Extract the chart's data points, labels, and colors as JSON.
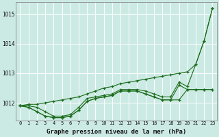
{
  "title": "Graphe pression niveau de la mer (hPa)",
  "bg_color": "#cceae4",
  "grid_color": "#ffffff",
  "line_color": "#1a6b1a",
  "xlim": [
    -0.5,
    23.5
  ],
  "ylim": [
    1011.4,
    1015.4
  ],
  "yticks": [
    1012,
    1013,
    1014,
    1015
  ],
  "xticks": [
    0,
    1,
    2,
    3,
    4,
    5,
    6,
    7,
    8,
    9,
    10,
    11,
    12,
    13,
    14,
    15,
    16,
    17,
    18,
    19,
    20,
    21,
    22,
    23
  ],
  "series": [
    [
      1011.9,
      1011.95,
      1011.95,
      1012.0,
      1012.05,
      1012.1,
      1012.15,
      1012.2,
      1012.3,
      1012.4,
      1012.5,
      1012.55,
      1012.65,
      1012.7,
      1012.75,
      1012.8,
      1012.85,
      1012.9,
      1012.95,
      1013.0,
      1013.05,
      1013.3,
      1014.1,
      1015.2
    ],
    [
      1011.9,
      1011.9,
      1011.85,
      1011.7,
      1011.55,
      1011.55,
      1011.6,
      1011.85,
      1012.15,
      1012.2,
      1012.25,
      1012.3,
      1012.45,
      1012.45,
      1012.45,
      1012.4,
      1012.3,
      1012.2,
      1012.2,
      1012.7,
      1012.55,
      1013.3,
      1014.1,
      1015.2
    ],
    [
      1011.9,
      1011.85,
      1011.7,
      1011.55,
      1011.5,
      1011.5,
      1011.55,
      1011.75,
      1012.05,
      1012.15,
      1012.2,
      1012.25,
      1012.4,
      1012.4,
      1012.4,
      1012.3,
      1012.2,
      1012.1,
      1012.1,
      1012.6,
      1012.45,
      1012.45,
      1012.45,
      1012.45
    ],
    [
      1011.9,
      1011.85,
      1011.7,
      1011.55,
      1011.5,
      1011.5,
      1011.55,
      1011.75,
      1012.05,
      1012.15,
      1012.2,
      1012.25,
      1012.4,
      1012.4,
      1012.4,
      1012.3,
      1012.2,
      1012.1,
      1012.1,
      1012.1,
      1012.45,
      1012.45,
      1012.45,
      1012.45
    ]
  ]
}
